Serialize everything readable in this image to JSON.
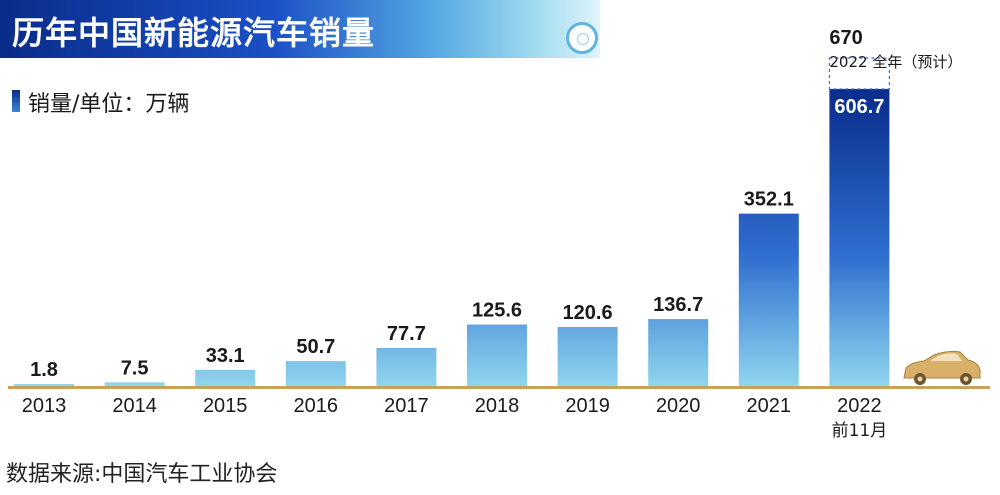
{
  "header": {
    "title": "历年中国新能源汽车销量",
    "unit_label": "销量/单位：万辆"
  },
  "footer": {
    "source": "数据来源:中国汽车工业协会"
  },
  "colors": {
    "bar_top": "#0b2f8f",
    "bar_bottom": "#8fd6ee",
    "title_start": "#0a2c8a",
    "axis": "#c8a25a"
  },
  "icons": {
    "car": "car-icon"
  },
  "chart_data": {
    "type": "bar",
    "title": "历年中国新能源汽车销量",
    "unit": "万辆",
    "categories": [
      "2013",
      "2014",
      "2015",
      "2016",
      "2017",
      "2018",
      "2019",
      "2020",
      "2021",
      "2022"
    ],
    "category_sublabels": [
      "",
      "",
      "",
      "",
      "",
      "",
      "",
      "",
      "",
      "前11月"
    ],
    "values": [
      1.8,
      7.5,
      33.1,
      50.7,
      77.7,
      125.6,
      120.6,
      136.7,
      352.1,
      606.7
    ],
    "value_labels": [
      "1.8",
      "7.5",
      "33.1",
      "50.7",
      "77.7",
      "125.6",
      "120.6",
      "136.7",
      "352.1",
      "606.7"
    ],
    "projection": {
      "category": "2022",
      "value": 670,
      "value_label": "670",
      "note": "2022 全年（预计）"
    },
    "ylim": [
      0,
      670
    ],
    "grid": false,
    "legend": "none"
  }
}
